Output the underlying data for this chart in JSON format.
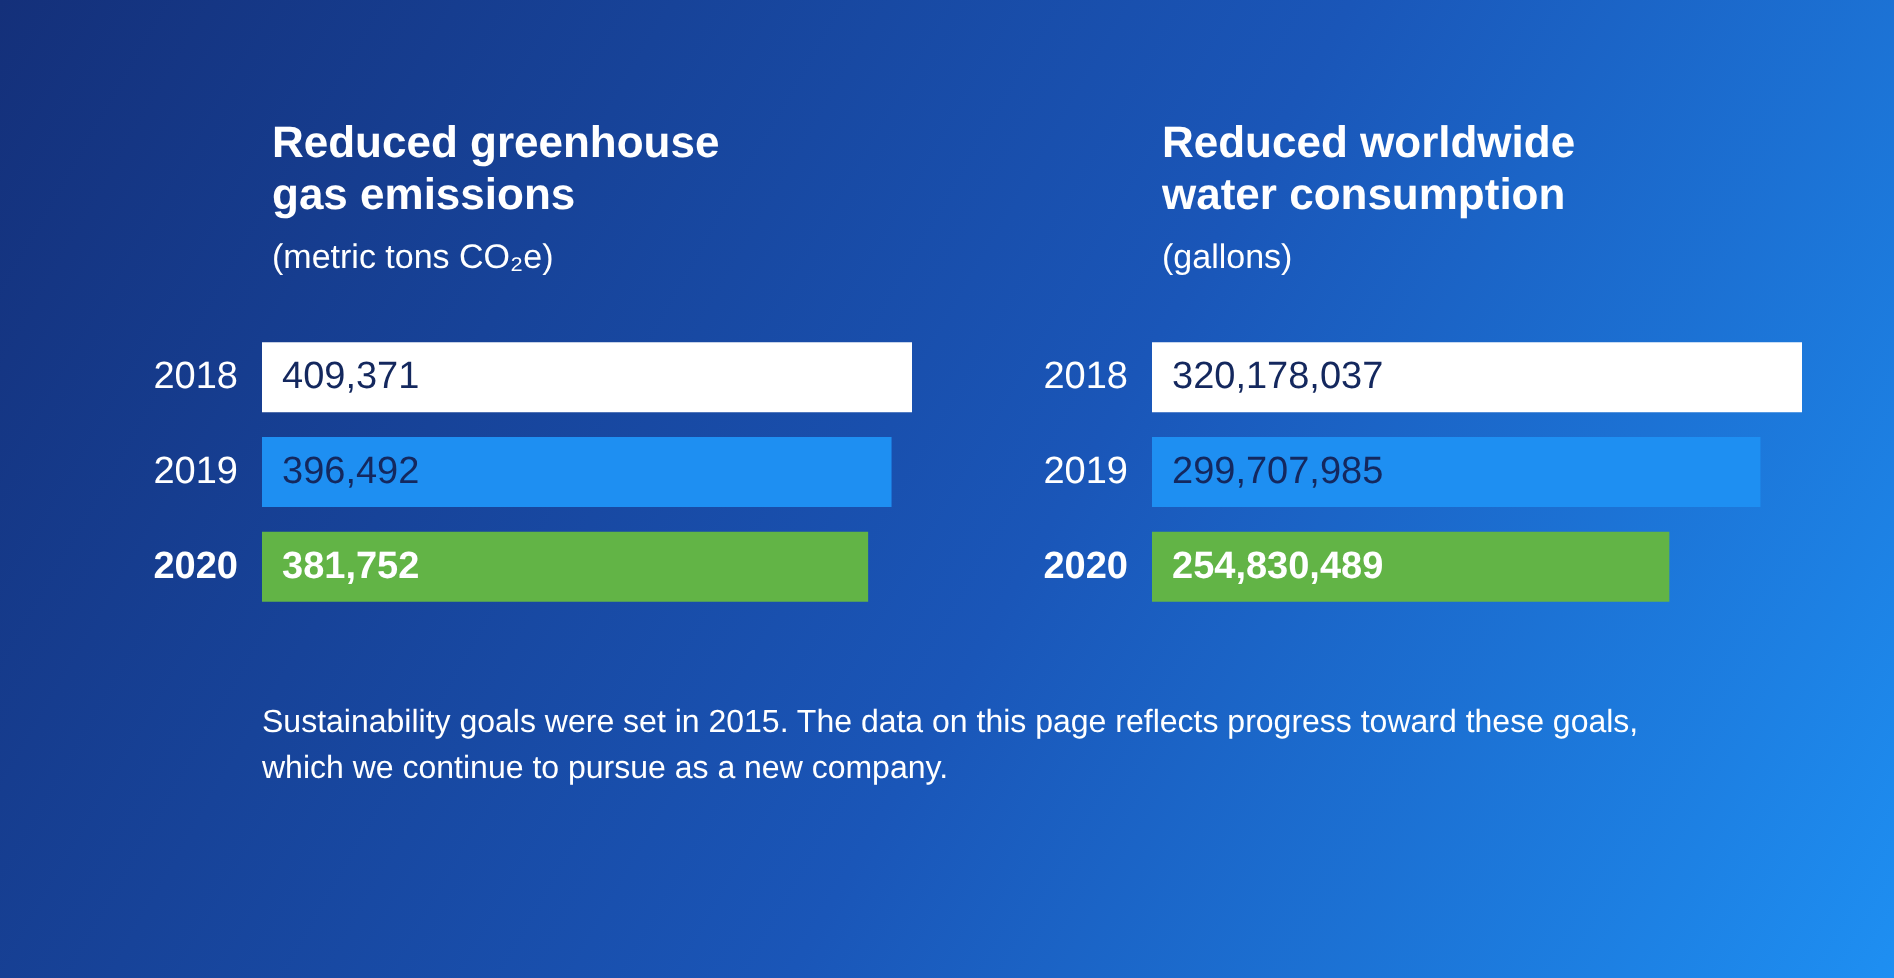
{
  "chart_data": [
    {
      "type": "bar",
      "orientation": "horizontal",
      "title": "Reduced greenhouse\ngas emissions",
      "subtitle": "(metric tons CO₂e)",
      "categories": [
        "2018",
        "2019",
        "2020"
      ],
      "values": [
        409371,
        396492,
        381752
      ],
      "value_labels": [
        "409,371",
        "396,492",
        "381,752"
      ],
      "colors": [
        "#ffffff",
        "#1e8ff2",
        "#62b446"
      ],
      "annotations": [
        "Sustainability goals were set in 2015. The data on this page reflects progress toward these goals, which we continue to pursue as a new company."
      ]
    },
    {
      "type": "bar",
      "orientation": "horizontal",
      "title": "Reduced worldwide\nwater consumption",
      "subtitle": "(gallons)",
      "categories": [
        "2018",
        "2019",
        "2020"
      ],
      "values": [
        320178037,
        299707985,
        254830489
      ],
      "value_labels": [
        "320,178,037",
        "299,707,985",
        "254,830,489"
      ],
      "colors": [
        "#ffffff",
        "#1e8ff2",
        "#62b446"
      ]
    }
  ]
}
